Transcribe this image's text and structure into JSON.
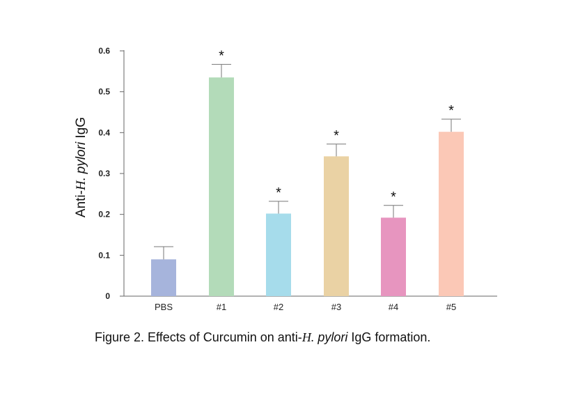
{
  "chart_data": {
    "type": "bar",
    "categories": [
      "PBS",
      "#1",
      "#2",
      "#3",
      "#4",
      "#5"
    ],
    "values": [
      0.09,
      0.535,
      0.202,
      0.342,
      0.192,
      0.402
    ],
    "errors": [
      0.031,
      0.032,
      0.03,
      0.03,
      0.03,
      0.031
    ],
    "significance": [
      "",
      "*",
      "*",
      "*",
      "*",
      "*"
    ],
    "colors": [
      "#a6b4dc",
      "#b3dbb9",
      "#a6dceb",
      "#ead2a4",
      "#e795bf",
      "#fbc8b6"
    ],
    "ylim": [
      0,
      0.6
    ],
    "yticks": [
      0,
      0.1,
      0.2,
      0.3,
      0.4,
      0.5,
      0.6
    ],
    "ytick_labels": [
      "0",
      "0.1",
      "0.2",
      "0.3",
      "0.4",
      "0.5",
      "0.6"
    ],
    "ylabel": {
      "prefix": "Anti-",
      "species_genus": "H.",
      "species_name": " pylori",
      "suffix": " IgG"
    },
    "xlabel": "",
    "grid": false
  },
  "caption": {
    "lead": "Figure 2.  Effects of Curcumin on anti-",
    "genus": "H.",
    "species": " pylori",
    "tail": " IgG formation."
  }
}
